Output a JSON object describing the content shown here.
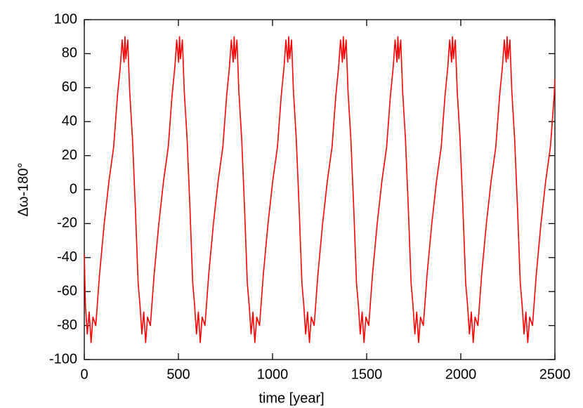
{
  "chart_data": {
    "type": "line",
    "xlabel": "time [year]",
    "ylabel": "Δω-180°",
    "xlim": [
      0,
      2500
    ],
    "ylim": [
      -100,
      100
    ],
    "xticks": [
      0,
      500,
      1000,
      1500,
      2000,
      2500
    ],
    "yticks": [
      -100,
      -80,
      -60,
      -40,
      -20,
      0,
      20,
      40,
      60,
      80,
      100
    ],
    "series": [
      {
        "color": "#ff0000",
        "x": [
          0,
          6,
          16,
          26,
          36,
          46,
          61,
          81,
          106,
          131,
          156,
          176,
          191,
          201,
          211,
          216,
          221,
          231,
          241,
          256,
          271,
          286,
          296,
          306,
          316,
          326,
          336,
          351,
          371,
          396,
          421,
          446,
          466,
          481,
          491,
          501,
          506,
          511,
          521,
          531,
          546,
          561,
          576,
          586,
          596,
          606,
          616,
          626,
          641,
          661,
          686,
          711,
          736,
          756,
          771,
          781,
          791,
          796,
          801,
          811,
          821,
          836,
          851,
          866,
          876,
          886,
          896,
          906,
          916,
          931,
          951,
          976,
          1001,
          1026,
          1046,
          1061,
          1071,
          1081,
          1086,
          1091,
          1101,
          1111,
          1126,
          1141,
          1156,
          1166,
          1176,
          1186,
          1196,
          1206,
          1221,
          1241,
          1266,
          1291,
          1316,
          1336,
          1351,
          1361,
          1371,
          1376,
          1381,
          1391,
          1401,
          1416,
          1431,
          1446,
          1456,
          1466,
          1476,
          1486,
          1496,
          1511,
          1531,
          1556,
          1581,
          1606,
          1626,
          1641,
          1651,
          1661,
          1666,
          1671,
          1681,
          1691,
          1706,
          1721,
          1736,
          1746,
          1756,
          1766,
          1776,
          1786,
          1801,
          1821,
          1846,
          1871,
          1896,
          1916,
          1931,
          1941,
          1951,
          1956,
          1961,
          1971,
          1981,
          1996,
          2011,
          2026,
          2036,
          2046,
          2056,
          2066,
          2076,
          2091,
          2111,
          2136,
          2161,
          2186,
          2206,
          2221,
          2231,
          2241,
          2246,
          2251,
          2261,
          2271,
          2286,
          2301,
          2316,
          2326,
          2336,
          2346,
          2356,
          2366,
          2381,
          2401,
          2426,
          2451,
          2476,
          2496,
          2500
        ],
        "values": [
          -38,
          -68,
          -85,
          -72,
          -90,
          -75,
          -80,
          -50,
          -20,
          5,
          25,
          55,
          72,
          88,
          75,
          90,
          77,
          88,
          58,
          30,
          -10,
          -55,
          -68,
          -85,
          -72,
          -90,
          -75,
          -80,
          -50,
          -20,
          5,
          25,
          55,
          72,
          88,
          75,
          90,
          77,
          88,
          58,
          30,
          -10,
          -55,
          -68,
          -85,
          -72,
          -90,
          -75,
          -80,
          -50,
          -20,
          5,
          25,
          55,
          72,
          88,
          75,
          90,
          77,
          88,
          58,
          30,
          -10,
          -55,
          -68,
          -85,
          -72,
          -90,
          -75,
          -80,
          -50,
          -20,
          5,
          25,
          55,
          72,
          88,
          75,
          90,
          77,
          88,
          58,
          30,
          -10,
          -55,
          -68,
          -85,
          -72,
          -90,
          -75,
          -80,
          -50,
          -20,
          5,
          25,
          55,
          72,
          88,
          75,
          90,
          77,
          88,
          58,
          30,
          -10,
          -55,
          -68,
          -85,
          -72,
          -90,
          -75,
          -80,
          -50,
          -20,
          5,
          25,
          55,
          72,
          88,
          75,
          90,
          77,
          88,
          58,
          30,
          -10,
          -55,
          -68,
          -85,
          -72,
          -90,
          -75,
          -80,
          -50,
          -20,
          5,
          25,
          55,
          72,
          88,
          75,
          90,
          77,
          88,
          58,
          30,
          -10,
          -55,
          -68,
          -85,
          -72,
          -90,
          -75,
          -80,
          -50,
          -20,
          5,
          25,
          55,
          72,
          88,
          75,
          90,
          77,
          88,
          58,
          30,
          -10,
          -55,
          -68,
          -85,
          -72,
          -90,
          -75,
          -80,
          -50,
          -20,
          5,
          25,
          55,
          65
        ]
      }
    ]
  }
}
